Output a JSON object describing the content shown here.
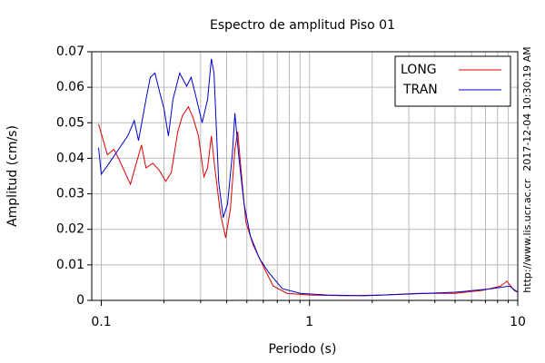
{
  "chart_data": {
    "type": "line",
    "title": "Espectro de amplitud Piso 01",
    "xlabel": "Periodo (s)",
    "ylabel": "Amplitud (cm/s)",
    "xscale": "log",
    "xlim": [
      0.09,
      10
    ],
    "xticks": [
      0.1,
      1,
      10
    ],
    "xminorticks": [
      0.2,
      0.3,
      0.4,
      0.5,
      0.6,
      0.7,
      0.8,
      0.9,
      2,
      3,
      4,
      5,
      6,
      7,
      8,
      9
    ],
    "ylim": [
      0,
      0.07
    ],
    "yticks": [
      0,
      0.01,
      0.02,
      0.03,
      0.04,
      0.05,
      0.06,
      0.07
    ],
    "grid": true,
    "legend": "top-right",
    "annotations": [
      "2017-12-04 10:30:19 AM",
      "http://www.lis.ucr.ac.cr"
    ],
    "series": [
      {
        "name": "LONG",
        "color": "#dd0000",
        "x": [
          0.097,
          0.1,
          0.107,
          0.115,
          0.121,
          0.13,
          0.138,
          0.148,
          0.156,
          0.164,
          0.177,
          0.19,
          0.204,
          0.217,
          0.233,
          0.245,
          0.262,
          0.276,
          0.293,
          0.311,
          0.324,
          0.338,
          0.351,
          0.373,
          0.396,
          0.417,
          0.438,
          0.452,
          0.47,
          0.495,
          0.536,
          0.605,
          0.668,
          0.778,
          1,
          1.5,
          2.24,
          3.34,
          5.0,
          6.76,
          8.26,
          8.87,
          9.61,
          10
        ],
        "values": [
          0.0496,
          0.047,
          0.041,
          0.0425,
          0.04,
          0.036,
          0.0327,
          0.039,
          0.0437,
          0.0373,
          0.0386,
          0.0366,
          0.0335,
          0.036,
          0.0475,
          0.0519,
          0.0545,
          0.0514,
          0.0463,
          0.0348,
          0.0373,
          0.0463,
          0.0373,
          0.0245,
          0.0176,
          0.0258,
          0.0425,
          0.0475,
          0.036,
          0.022,
          0.0156,
          0.0092,
          0.0041,
          0.002,
          0.0015,
          0.0013,
          0.0015,
          0.002,
          0.002,
          0.0028,
          0.004,
          0.0054,
          0.0028,
          0.0023
        ]
      },
      {
        "name": "TRAN",
        "color": "#0000cc",
        "x": [
          0.097,
          0.1,
          0.109,
          0.121,
          0.134,
          0.144,
          0.151,
          0.164,
          0.172,
          0.181,
          0.19,
          0.2,
          0.21,
          0.221,
          0.238,
          0.257,
          0.27,
          0.284,
          0.305,
          0.324,
          0.338,
          0.348,
          0.366,
          0.385,
          0.404,
          0.426,
          0.438,
          0.456,
          0.485,
          0.52,
          0.575,
          0.636,
          0.74,
          0.904,
          1.22,
          1.83,
          3.02,
          5.0,
          7.47,
          9.14,
          10
        ],
        "values": [
          0.043,
          0.0355,
          0.0386,
          0.0425,
          0.0463,
          0.0506,
          0.045,
          0.0565,
          0.0628,
          0.064,
          0.059,
          0.054,
          0.0463,
          0.0565,
          0.064,
          0.0603,
          0.0628,
          0.0577,
          0.05,
          0.0565,
          0.068,
          0.064,
          0.0335,
          0.0233,
          0.0271,
          0.0412,
          0.0527,
          0.0412,
          0.0271,
          0.0182,
          0.0118,
          0.0079,
          0.0033,
          0.002,
          0.0015,
          0.0013,
          0.0018,
          0.0023,
          0.0033,
          0.004,
          0.0023
        ]
      }
    ]
  }
}
